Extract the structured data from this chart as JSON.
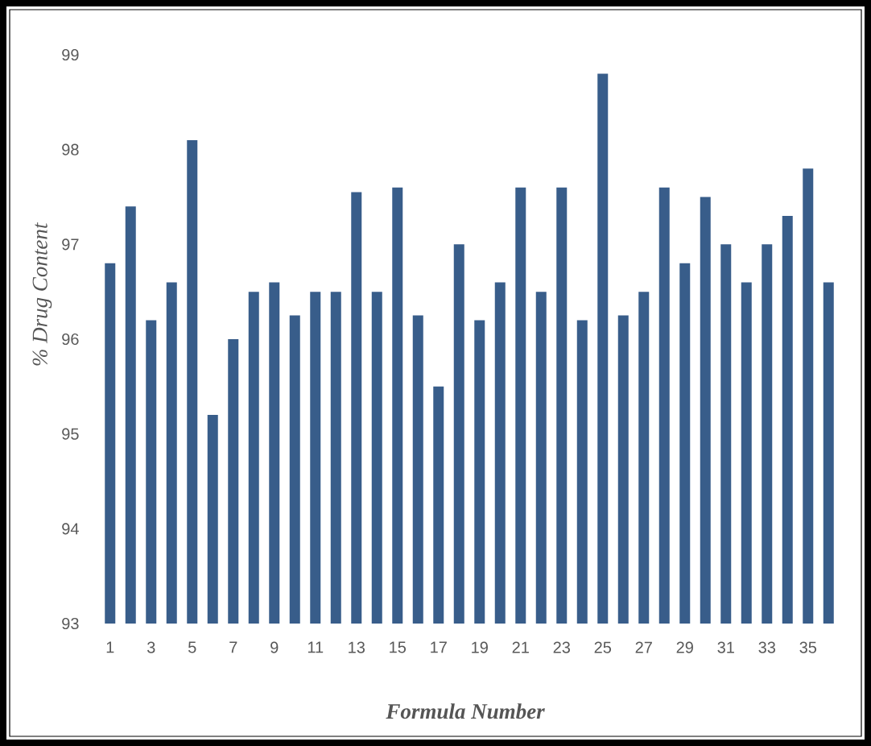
{
  "chart_data": {
    "type": "bar",
    "xlabel": "Formula Number",
    "ylabel": "% Drug Content",
    "categories": [
      "1",
      null,
      "3",
      null,
      "5",
      null,
      "7",
      null,
      "9",
      null,
      "11",
      null,
      "13",
      null,
      "15",
      null,
      "17",
      null,
      "19",
      null,
      "21",
      null,
      "23",
      null,
      "25",
      null,
      "27",
      null,
      "29",
      null,
      "31",
      null,
      "33",
      null,
      "35",
      null
    ],
    "values": [
      96.8,
      97.4,
      96.2,
      96.6,
      98.1,
      95.2,
      96.0,
      96.5,
      96.6,
      96.25,
      96.5,
      96.5,
      97.55,
      96.5,
      97.6,
      96.25,
      95.5,
      97.0,
      96.2,
      96.6,
      97.6,
      96.5,
      97.6,
      96.2,
      98.8,
      96.25,
      96.5,
      97.6,
      96.8,
      97.5,
      97.0,
      96.6,
      97.0,
      97.3,
      97.8,
      96.6
    ],
    "color": "#385d8a",
    "ylim": [
      93,
      99
    ],
    "yticks": [
      93,
      94,
      95,
      96,
      97,
      98,
      99
    ]
  }
}
